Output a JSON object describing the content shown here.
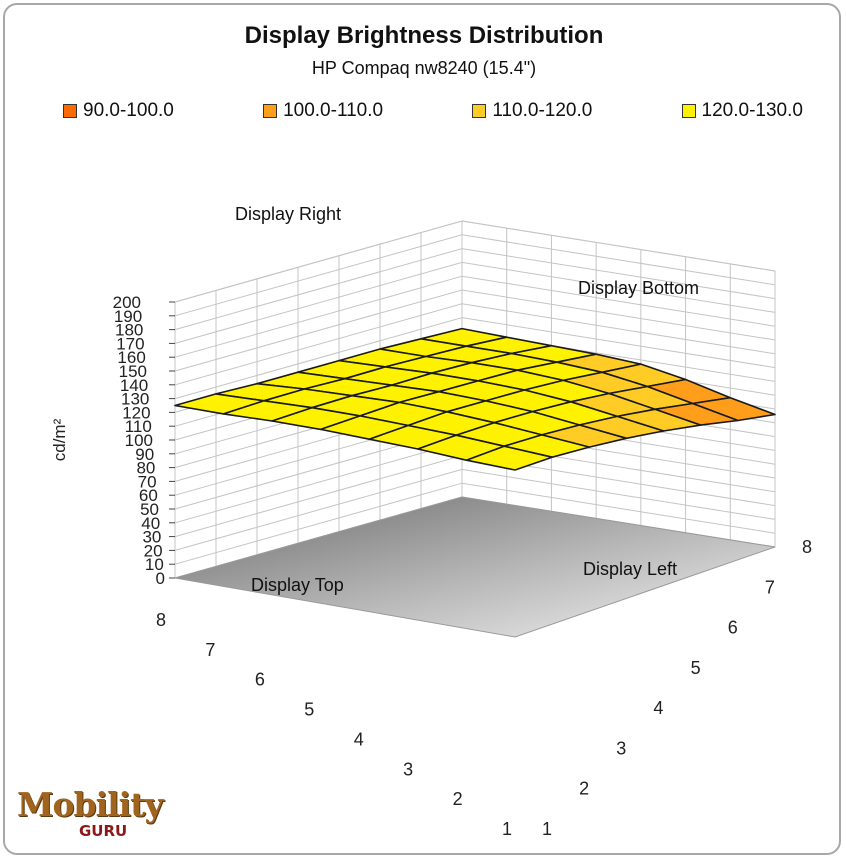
{
  "chart_data": {
    "type": "surface",
    "title": "Display Brightness Distribution",
    "subtitle": "HP Compaq nw8240 (15.4\")",
    "zlabel": "cd/m²",
    "zlim": [
      0,
      200
    ],
    "z_ticks": [
      "0",
      "10",
      "20",
      "30",
      "40",
      "50",
      "60",
      "70",
      "80",
      "90",
      "100",
      "110",
      "120",
      "130",
      "140",
      "150",
      "160",
      "170",
      "180",
      "190",
      "200"
    ],
    "x_ticks": [
      "1",
      "2",
      "3",
      "4",
      "5",
      "6",
      "7",
      "8"
    ],
    "y_ticks": [
      "1",
      "2",
      "3",
      "4",
      "5",
      "6",
      "7",
      "8"
    ],
    "legend": [
      {
        "label": "90.0-100.0",
        "color": "#ff6a00"
      },
      {
        "label": "100.0-110.0",
        "color": "#ff9e1a"
      },
      {
        "label": "110.0-120.0",
        "color": "#ffcc26"
      },
      {
        "label": "120.0-130.0",
        "color": "#fff200"
      }
    ],
    "annotations": [
      "Display Right",
      "Display Bottom",
      "Display Top",
      "Display Left"
    ],
    "grid": true,
    "legend_position": "top",
    "values": [
      [
        125,
        125,
        124,
        124,
        124,
        124,
        123,
        122
      ],
      [
        125,
        126,
        126,
        125,
        125,
        124,
        123,
        121
      ],
      [
        126,
        127,
        127,
        126,
        126,
        125,
        123,
        120
      ],
      [
        126,
        127,
        128,
        127,
        126,
        125,
        122,
        119
      ],
      [
        125,
        126,
        127,
        126,
        125,
        123,
        120,
        117
      ],
      [
        124,
        125,
        125,
        124,
        122,
        119,
        115,
        111
      ],
      [
        122,
        123,
        122,
        120,
        117,
        113,
        108,
        103
      ],
      [
        121,
        121,
        119,
        116,
        112,
        107,
        101,
        96
      ]
    ]
  },
  "watermark": {
    "main": "Mobility",
    "sub": "GURU"
  }
}
